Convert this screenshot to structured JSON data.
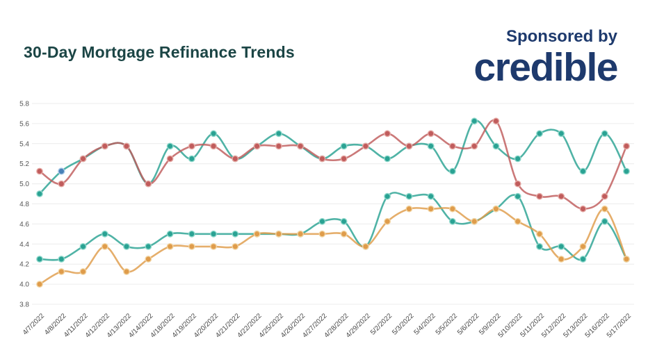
{
  "page": {
    "background": "#ffffff"
  },
  "header": {
    "title": "30-Day Mortgage Refinance Trends",
    "title_color": "#1b4545",
    "sponsor": {
      "prefix": "Sponsored by",
      "brand": "credible",
      "color": "#1e3a6d"
    }
  },
  "axes": {
    "tick_color": "#555555",
    "date_label_color": "#4a4a4a",
    "grid_color": "#ececec"
  },
  "chart_data": {
    "type": "line",
    "title": "30-Day Mortgage Refinance Trends",
    "xlabel": "",
    "ylabel": "",
    "ylim": [
      3.8,
      5.8
    ],
    "yticks": [
      5.8,
      5.6,
      5.4,
      5.2,
      5.0,
      4.8,
      4.6,
      4.4,
      4.2,
      4.0,
      3.8
    ],
    "grid": true,
    "legend_position": "none",
    "x": [
      "4/7/2022",
      "4/8/2022",
      "4/11/2022",
      "4/12/2022",
      "4/13/2022",
      "4/14/2022",
      "4/18/2022",
      "4/19/2022",
      "4/20/2022",
      "4/21/2022",
      "4/22/2022",
      "4/25/2022",
      "4/26/2022",
      "4/27/2022",
      "4/28/2022",
      "4/29/2022",
      "5/2/2022",
      "5/3/2022",
      "5/4/2022",
      "5/5/2022",
      "5/6/2022",
      "5/9/2022",
      "5/10/2022",
      "5/11/2022",
      "5/12/2022",
      "5/13/2022",
      "5/16/2022",
      "5/17/2022"
    ],
    "series": [
      {
        "id": "teal-upper",
        "color": "#2aa293",
        "marker_ring": "#8fd8cb",
        "values": [
          4.9,
          5.125,
          5.25,
          5.375,
          5.375,
          5.0,
          5.375,
          5.25,
          5.5,
          5.25,
          5.375,
          5.5,
          5.375,
          5.25,
          5.375,
          5.375,
          5.25,
          5.375,
          5.375,
          5.125,
          5.625,
          5.375,
          5.25,
          5.5,
          5.5,
          5.125,
          5.5,
          5.125
        ]
      },
      {
        "id": "teal-lower",
        "color": "#2aa293",
        "marker_ring": "#8fd8cb",
        "values": [
          4.25,
          4.25,
          4.375,
          4.5,
          4.375,
          4.375,
          4.5,
          4.5,
          4.5,
          4.5,
          4.5,
          4.5,
          4.5,
          4.625,
          4.625,
          4.375,
          4.875,
          4.875,
          4.875,
          4.625,
          4.625,
          4.75,
          4.875,
          4.375,
          4.375,
          4.25,
          4.625,
          4.25
        ]
      },
      {
        "id": "red",
        "color": "#c05c5c",
        "marker_ring": "#e6aba6",
        "values": [
          5.125,
          5.0,
          5.25,
          5.375,
          5.375,
          5.0,
          5.25,
          5.375,
          5.375,
          5.25,
          5.375,
          5.375,
          5.375,
          5.25,
          5.25,
          5.375,
          5.5,
          5.375,
          5.5,
          5.375,
          5.375,
          5.625,
          5.0,
          4.875,
          4.875,
          4.75,
          4.875,
          5.375
        ]
      },
      {
        "id": "orange",
        "color": "#df9c4b",
        "marker_ring": "#f2d4a2",
        "values": [
          4.0,
          4.125,
          4.125,
          4.375,
          4.125,
          4.25,
          4.375,
          4.375,
          4.375,
          4.375,
          4.5,
          4.5,
          4.5,
          4.5,
          4.5,
          4.375,
          4.625,
          4.75,
          4.75,
          4.75,
          4.625,
          4.75,
          4.625,
          4.5,
          4.25,
          4.375,
          4.75,
          4.25
        ]
      }
    ],
    "extra_marker": {
      "x": "4/8/2022",
      "value": 5.125,
      "color": "#4a82b8",
      "ring": "#a9c9e8"
    }
  }
}
